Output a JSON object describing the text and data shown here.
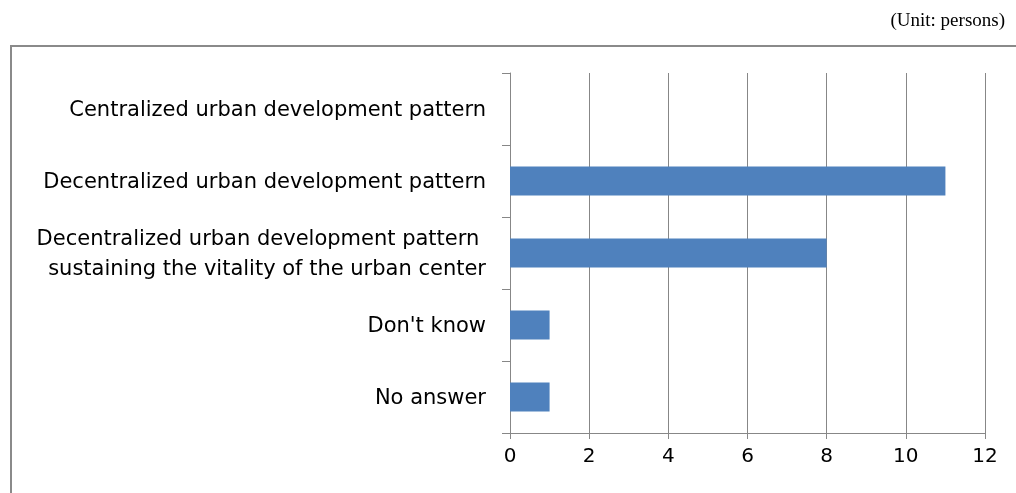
{
  "chart_data": {
    "type": "bar",
    "orientation": "horizontal",
    "categories": [
      "Centralized urban development pattern",
      "Decentralized urban development pattern",
      "Decentralized urban development pattern sustaining the vitality of the urban center",
      "Don't know",
      "No answer"
    ],
    "values": [
      0,
      11,
      8,
      1,
      1
    ],
    "color": "#4f81bd",
    "xlim": [
      0,
      12
    ],
    "xticks": [
      0,
      2,
      4,
      6,
      8,
      10,
      12
    ],
    "grid": "x",
    "annotations": [
      "(Unit: persons)"
    ]
  }
}
